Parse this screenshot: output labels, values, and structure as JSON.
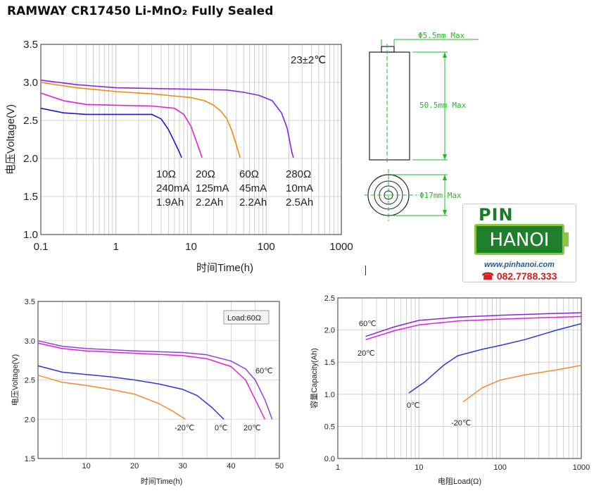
{
  "title": "RAMWAY CR17450 Li-MnO₂ Fully Sealed",
  "chart_data": [
    {
      "type": "line",
      "xscale": "log",
      "xlim": [
        0.1,
        1000
      ],
      "ylim": [
        1.0,
        3.5
      ],
      "xticks": [
        "0.1",
        "1",
        "10",
        "100",
        "1000"
      ],
      "yticks": [
        "1.0",
        "1.5",
        "2.0",
        "2.5",
        "3.0",
        "3.5"
      ],
      "xlabel": "时间Time(h)",
      "ylabel": "电压Voltage(V)",
      "annotation": "23±2℃",
      "grid": true,
      "series": [
        {
          "name": "10Ω",
          "current": "240mA",
          "capacity": "1.9Ah",
          "color": "#1a1ac8",
          "x": [
            0.1,
            0.2,
            0.4,
            1,
            2,
            3,
            4,
            5,
            6,
            7,
            7.5
          ],
          "y": [
            2.66,
            2.6,
            2.58,
            2.58,
            2.58,
            2.58,
            2.52,
            2.38,
            2.22,
            2.08,
            2.01
          ]
        },
        {
          "name": "20Ω",
          "current": "125mA",
          "capacity": "2.2Ah",
          "color": "#e020d8",
          "x": [
            0.1,
            0.2,
            0.4,
            1,
            3,
            6,
            8,
            10,
            12,
            14
          ],
          "y": [
            2.86,
            2.76,
            2.71,
            2.7,
            2.69,
            2.66,
            2.58,
            2.42,
            2.2,
            2.01
          ]
        },
        {
          "name": "60Ω",
          "current": "45mA",
          "capacity": "2.2Ah",
          "color": "#f08a10",
          "x": [
            0.1,
            0.3,
            1,
            3,
            10,
            15,
            20,
            25,
            30,
            35,
            40,
            45
          ],
          "y": [
            3.0,
            2.93,
            2.88,
            2.85,
            2.8,
            2.76,
            2.7,
            2.62,
            2.52,
            2.36,
            2.18,
            2.01
          ]
        },
        {
          "name": "280Ω",
          "current": "10mA",
          "capacity": "2.5Ah",
          "color": "#8a24d8",
          "x": [
            0.1,
            0.3,
            1,
            3,
            10,
            30,
            50,
            80,
            120,
            160,
            190,
            220,
            230
          ],
          "y": [
            3.03,
            2.97,
            2.93,
            2.92,
            2.91,
            2.9,
            2.87,
            2.83,
            2.76,
            2.6,
            2.4,
            2.08,
            2.01
          ]
        }
      ]
    },
    {
      "type": "line",
      "xlim": [
        0,
        50
      ],
      "ylim": [
        1.5,
        3.5
      ],
      "xticks": [
        "10",
        "20",
        "30",
        "40",
        "50"
      ],
      "yticks": [
        "1.5",
        "2.0",
        "2.5",
        "3.0",
        "3.5"
      ],
      "xlabel": "时间Time(h)",
      "ylabel": "电压Voltage(V)",
      "annotation": "Load:60Ω",
      "grid": true,
      "series": [
        {
          "name": "-20℃",
          "color": "#f08a30",
          "x": [
            0,
            5,
            10,
            15,
            20,
            25,
            28,
            30.5
          ],
          "y": [
            2.56,
            2.47,
            2.43,
            2.38,
            2.32,
            2.2,
            2.1,
            2.0
          ]
        },
        {
          "name": "0℃",
          "color": "#2a3ad0",
          "x": [
            0,
            5,
            10,
            15,
            20,
            25,
            30,
            33,
            36,
            38.5
          ],
          "y": [
            2.68,
            2.6,
            2.57,
            2.54,
            2.5,
            2.45,
            2.38,
            2.3,
            2.15,
            2.0
          ]
        },
        {
          "name": "20℃",
          "color": "#e020d8",
          "x": [
            0,
            5,
            10,
            20,
            30,
            35,
            40,
            43,
            45,
            47
          ],
          "y": [
            2.97,
            2.9,
            2.87,
            2.84,
            2.81,
            2.77,
            2.67,
            2.5,
            2.25,
            2.0
          ]
        },
        {
          "name": "60℃",
          "color": "#9a3ae0",
          "x": [
            0,
            5,
            10,
            20,
            30,
            35,
            40,
            43,
            45,
            47,
            48.5
          ],
          "y": [
            3.0,
            2.93,
            2.9,
            2.87,
            2.85,
            2.82,
            2.74,
            2.64,
            2.5,
            2.25,
            2.0
          ]
        }
      ]
    },
    {
      "type": "line",
      "xscale": "log",
      "xlim": [
        1,
        1000
      ],
      "ylim": [
        0.0,
        2.5
      ],
      "xticks": [
        "1",
        "10",
        "100",
        "1000"
      ],
      "yticks": [
        "0.0",
        "0.5",
        "1.0",
        "1.5",
        "2.0",
        "2.5"
      ],
      "xlabel": "电阻Load(Ω)",
      "ylabel": "容量Capacity(Ah)",
      "grid": true,
      "series": [
        {
          "name": "60℃",
          "color": "#8a24d8",
          "x": [
            2.2,
            5,
            10,
            30,
            100,
            300,
            1000
          ],
          "y": [
            1.9,
            2.05,
            2.15,
            2.2,
            2.23,
            2.25,
            2.27
          ]
        },
        {
          "name": "20℃",
          "color": "#e020d8",
          "x": [
            2.2,
            5,
            10,
            30,
            100,
            300,
            1000
          ],
          "y": [
            1.85,
            1.99,
            2.08,
            2.14,
            2.17,
            2.19,
            2.21
          ]
        },
        {
          "name": "0℃",
          "color": "#2a3ad0",
          "x": [
            7.5,
            12,
            20,
            30,
            60,
            100,
            200,
            500,
            1000
          ],
          "y": [
            1.02,
            1.2,
            1.45,
            1.6,
            1.7,
            1.76,
            1.85,
            2.0,
            2.1
          ]
        },
        {
          "name": "-20℃",
          "color": "#f08a30",
          "x": [
            35,
            60,
            100,
            200,
            500,
            1000
          ],
          "y": [
            0.88,
            1.1,
            1.22,
            1.3,
            1.38,
            1.45
          ]
        }
      ]
    }
  ],
  "drawing": {
    "cap_diameter": "Φ5.5mm Max",
    "length": "50.5mm Max",
    "diameter": "Φ17mm Max",
    "line_color": "#22bb22"
  },
  "logo": {
    "pin": "PIN",
    "hanoi": "HANOI",
    "url": "www.pinhanoi.com",
    "phone": "082.7788.333",
    "phone_icon": "phone-icon"
  }
}
